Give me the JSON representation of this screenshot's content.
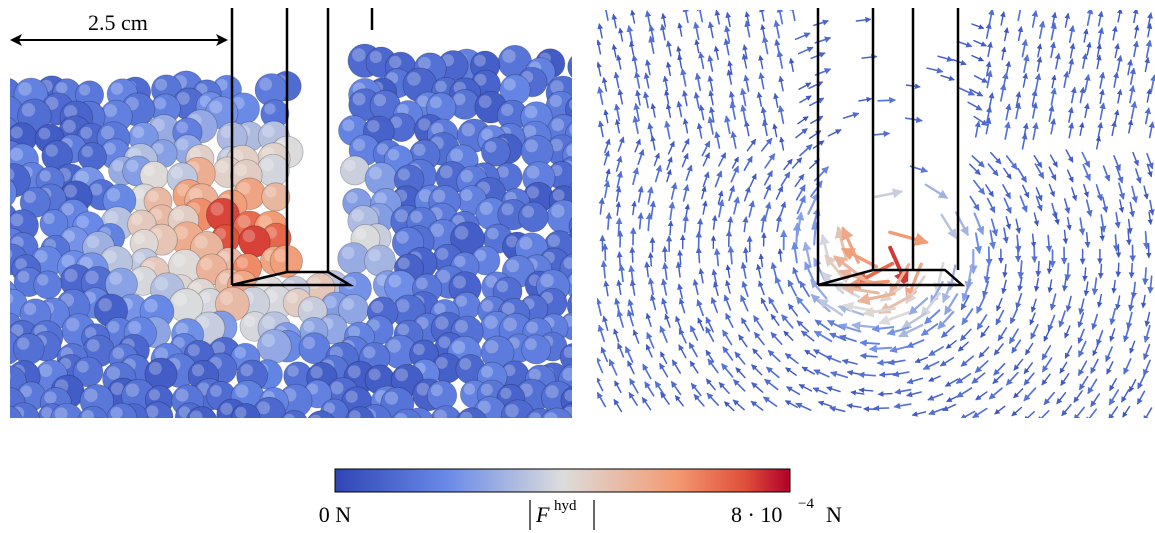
{
  "scale_bar": {
    "label": "2.5 cm"
  },
  "colorbar": {
    "min_label": "0 N",
    "quantity": {
      "symbol": "F",
      "superscript": "hyd"
    },
    "max_label": {
      "mantissa": "8 · 10",
      "exponent": "−4",
      "unit": "N"
    }
  }
}
